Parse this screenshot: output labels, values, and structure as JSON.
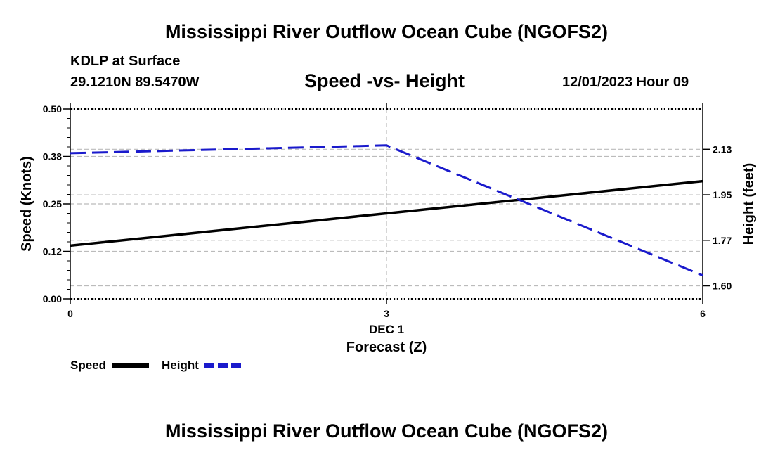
{
  "header": {
    "title": "Mississippi River Outflow Ocean Cube (NGOFS2)",
    "station": "KDLP at Surface",
    "coords": "29.1210N  89.5470W",
    "chart_title": "Speed -vs- Height",
    "datetime": "12/01/2023 Hour 09"
  },
  "footer": {
    "title": "Mississippi River Outflow Ocean Cube (NGOFS2)"
  },
  "colors": {
    "speed": "#000000",
    "height": "#1a1acc",
    "grid": "#bbbbbb"
  },
  "chart_data": {
    "type": "line",
    "title": "Speed -vs- Height",
    "x": [
      0,
      3,
      6
    ],
    "x_ticks": [
      "0",
      "3",
      "6"
    ],
    "x_date_label": "DEC 1",
    "xlabel": "Forecast (Z)",
    "xlim": [
      0,
      6
    ],
    "ylabel": "Speed (Knots)",
    "ylim": [
      0,
      0.5
    ],
    "y_ticks": [
      "0.00",
      "0.12",
      "0.25",
      "0.38",
      "0.50"
    ],
    "y_tick_values": [
      0,
      0.125,
      0.25,
      0.375,
      0.5
    ],
    "y2label": "Height (feet)",
    "y2lim": [
      1.55,
      2.28
    ],
    "y2_ticks": [
      "1.60",
      "1.77",
      "1.95",
      "2.13"
    ],
    "y2_tick_values": [
      1.6,
      1.775,
      1.95,
      2.125
    ],
    "grid": true,
    "legend": "bottom-left",
    "series": [
      {
        "name": "Speed",
        "axis": "left",
        "style": "solid",
        "values": [
          0.14,
          0.225,
          0.31
        ]
      },
      {
        "name": "Height",
        "axis": "right",
        "style": "dashed",
        "values": [
          2.11,
          2.14,
          1.64
        ]
      }
    ]
  }
}
